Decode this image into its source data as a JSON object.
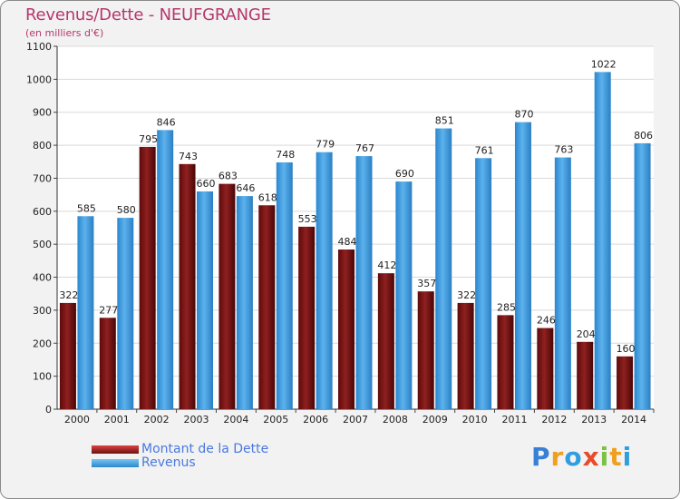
{
  "chart_data": {
    "type": "bar",
    "title": "Revenus/Dette - NEUFGRANGE",
    "subtitle": "(en milliers d'€)",
    "categories": [
      "2000",
      "2001",
      "2002",
      "2003",
      "2004",
      "2005",
      "2006",
      "2007",
      "2008",
      "2009",
      "2010",
      "2011",
      "2012",
      "2013",
      "2014"
    ],
    "series": [
      {
        "name": "Montant de la Dette",
        "color": "#8b1a1a",
        "values": [
          322,
          277,
          795,
          743,
          683,
          618,
          553,
          484,
          412,
          357,
          322,
          285,
          246,
          204,
          160
        ]
      },
      {
        "name": "Revenus",
        "color": "#4aa3e3",
        "values": [
          585,
          580,
          846,
          660,
          646,
          748,
          779,
          767,
          690,
          851,
          761,
          870,
          763,
          1022,
          806
        ]
      }
    ],
    "ylim": [
      0,
      1100
    ],
    "yticks": [
      0,
      100,
      200,
      300,
      400,
      500,
      600,
      700,
      800,
      900,
      1000,
      1100
    ],
    "grid": true,
    "legend": "bottom-left"
  },
  "legend": {
    "dette_label": "Montant de la Dette",
    "revenus_label": "Revenus"
  },
  "logo": {
    "letters": [
      "P",
      "r",
      "o",
      "x",
      "i",
      "t",
      "i"
    ],
    "colors": [
      "#3a7fd6",
      "#f0a020",
      "#2f9ee0",
      "#e84a2a",
      "#7cc242",
      "#f0a020",
      "#2f9ee0"
    ]
  }
}
